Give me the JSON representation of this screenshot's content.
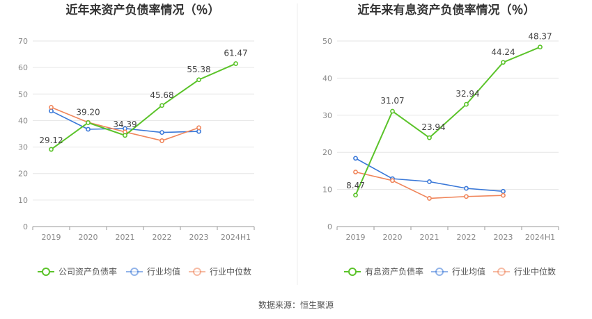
{
  "source": "数据来源：恒生聚源",
  "colors": {
    "company": "#5bc32a",
    "industry_avg": "#3a78d8",
    "industry_median": "#f0855a",
    "grid": "#e6e6e6",
    "axis": "#999999"
  },
  "chart_data": [
    {
      "type": "line",
      "title": "近年来资产负债率情况（％）",
      "categories": [
        "2019",
        "2020",
        "2021",
        "2022",
        "2023",
        "2024H1"
      ],
      "ylim": [
        0,
        70
      ],
      "yticks": [
        0,
        10,
        20,
        30,
        40,
        50,
        60,
        70
      ],
      "grid": true,
      "legend_position": "bottom",
      "series": [
        {
          "name": "公司资产负债率",
          "key": "company",
          "values": [
            29.12,
            39.2,
            34.39,
            45.68,
            55.38,
            61.47
          ],
          "labels": [
            "29.12",
            "39.20",
            "34.39",
            "45.68",
            "55.38",
            "61.47"
          ]
        },
        {
          "name": "行业均值",
          "key": "industry_avg",
          "values": [
            43.6,
            36.7,
            37.0,
            35.5,
            35.9,
            null
          ]
        },
        {
          "name": "行业中位数",
          "key": "industry_median",
          "values": [
            45.0,
            39.3,
            35.7,
            32.4,
            37.3,
            null
          ]
        }
      ]
    },
    {
      "type": "line",
      "title": "近年来有息资产负债率情况（％）",
      "categories": [
        "2019",
        "2020",
        "2021",
        "2022",
        "2023",
        "2024H1"
      ],
      "ylim": [
        0,
        50
      ],
      "yticks": [
        0,
        10,
        20,
        30,
        40,
        50
      ],
      "grid": true,
      "legend_position": "bottom",
      "series": [
        {
          "name": "有息资产负债率",
          "key": "company",
          "values": [
            8.47,
            31.07,
            23.94,
            32.94,
            44.24,
            48.37
          ],
          "labels": [
            "8.47",
            "31.07",
            "23.94",
            "32.94",
            "44.24",
            "48.37"
          ]
        },
        {
          "name": "行业均值",
          "key": "industry_avg",
          "values": [
            18.4,
            12.9,
            12.1,
            10.3,
            9.5,
            null
          ]
        },
        {
          "name": "行业中位数",
          "key": "industry_median",
          "values": [
            14.7,
            12.4,
            7.6,
            8.1,
            8.4,
            null
          ]
        }
      ]
    }
  ]
}
